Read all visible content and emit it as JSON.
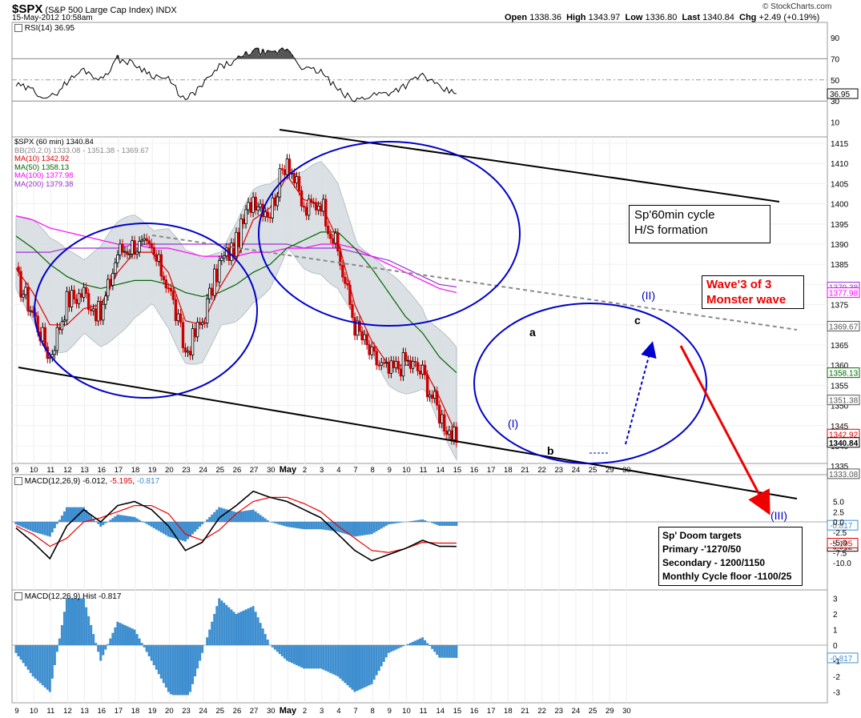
{
  "header": {
    "symbol": "$SPX",
    "name": "(S&P 500 Large Cap Index)",
    "exchange": "INDX",
    "date": "15-May-2012 10:58am",
    "open_label": "Open",
    "open": "1338.36",
    "high_label": "High",
    "high": "1343.97",
    "low_label": "Low",
    "low": "1336.80",
    "last_label": "Last",
    "last": "1340.84",
    "chg_label": "Chg",
    "chg": "+2.49 (+0.19%)",
    "source": "© StockCharts.com"
  },
  "rsi_panel": {
    "label": "RSI(14)",
    "value": "36.95",
    "ticks": [
      "90",
      "70",
      "50",
      "30",
      "10"
    ]
  },
  "price_panel": {
    "legend": [
      {
        "text": "$SPX (60 min) 1340.84",
        "color": "#000000"
      },
      {
        "text": "BB(20,2.0) 1333.08 - 1351.38 - 1369.67",
        "color": "#888888"
      },
      {
        "text": "MA(10) 1342.92",
        "color": "#dd0000"
      },
      {
        "text": "MA(50) 1358.13",
        "color": "#006600"
      },
      {
        "text": "MA(100) 1377.98",
        "color": "#ff00ff"
      },
      {
        "text": "MA(200) 1379.38",
        "color": "#9933cc"
      }
    ],
    "price_ticks": [
      "1415",
      "1410",
      "1405",
      "1400",
      "1395",
      "1390",
      "1385",
      "1380",
      "1375",
      "1370",
      "1365",
      "1360",
      "1355",
      "1350",
      "1345",
      "1340",
      "1335"
    ],
    "value_tags": [
      {
        "text": "1379.38",
        "value": 1379.38,
        "color": "#9933cc"
      },
      {
        "text": "1377.98",
        "value": 1377.98,
        "color": "#ff00ff"
      },
      {
        "text": "1369.67",
        "value": 1369.67,
        "color": "#555555"
      },
      {
        "text": "1358.13",
        "value": 1358.13,
        "color": "#006600"
      },
      {
        "text": "1351.38",
        "value": 1351.38,
        "color": "#555555"
      },
      {
        "text": "1342.92",
        "value": 1342.92,
        "color": "#dd0000"
      },
      {
        "text": "1340.84",
        "value": 1340.84,
        "color": "#000000"
      },
      {
        "text": "1333.08",
        "value": 1333.08,
        "color": "#555555"
      }
    ],
    "annotations": {
      "a": "a",
      "b": "b",
      "c": "c",
      "wave_i": "(I)",
      "wave_ii": "(II)",
      "wave_iii": "(III)"
    }
  },
  "macd_panel": {
    "label": "MACD(12,26,9)",
    "v1": "-6.012",
    "v2": "-5.195",
    "v3": "-0.817",
    "ticks": [
      "5.0",
      "2.5",
      "0.0",
      "-2.5",
      "-5.0",
      "-7.5",
      "-10.0"
    ],
    "tag1": "-6.012",
    "tag2": "-5.195",
    "tag3": "-0.817"
  },
  "hist_panel": {
    "label": "MACD(12,26,9) Hist",
    "value": "-0.817",
    "ticks": [
      "3",
      "2",
      "1",
      "0",
      "-1",
      "-2",
      "-3"
    ],
    "tag": "-0.817"
  },
  "x_axis": {
    "labels": [
      "9",
      "10",
      "11",
      "12",
      "13",
      "16",
      "17",
      "18",
      "19",
      "20",
      "23",
      "24",
      "25",
      "26",
      "27",
      "30",
      "May",
      "2",
      "3",
      "4",
      "7",
      "8",
      "9",
      "10",
      "11",
      "14",
      "15",
      "16",
      "17",
      "18",
      "21",
      "22",
      "23",
      "24",
      "25",
      "29",
      "30"
    ]
  },
  "notes": {
    "cycle": [
      "Sp'60min cycle",
      "H/S formation"
    ],
    "wave": [
      "Wave'3 of 3",
      "Monster wave"
    ],
    "targets": [
      "Sp' Doom targets",
      "Primary -'1270/50",
      "Secondary - 1200/1150",
      "Monthly Cycle floor -1100/25"
    ]
  },
  "colors": {
    "annotation_blue": "#0000cc",
    "arrow_red": "#ee0000",
    "macd_line": "#000000",
    "signal_line": "#ee0000",
    "histogram": "#3f8fd0",
    "bollinger_fill": "#d3dade",
    "candle_up": "#000000",
    "candle_down": "#cc0000"
  },
  "chart_data": {
    "type": "line",
    "title": "$SPX (S&P 500 Large Cap Index) 60 min",
    "xlabel": "",
    "ylabel": "",
    "ylim": [
      1332,
      1418
    ],
    "x": [
      "9",
      "10",
      "11",
      "12",
      "13",
      "16",
      "17",
      "18",
      "19",
      "20",
      "23",
      "24",
      "25",
      "26",
      "27",
      "30",
      "May",
      "2",
      "3",
      "4",
      "7",
      "8",
      "9",
      "10",
      "11",
      "14",
      "15"
    ],
    "series": [
      {
        "name": "$SPX (60 min)",
        "values": [
          1382,
          1373,
          1362,
          1376,
          1378,
          1372,
          1388,
          1390,
          1388,
          1380,
          1363,
          1371,
          1385,
          1390,
          1402,
          1398,
          1412,
          1398,
          1401,
          1388,
          1370,
          1362,
          1358,
          1361,
          1358,
          1348,
          1340.84
        ]
      },
      {
        "name": "MA(10)",
        "values": [
          1384,
          1378,
          1370,
          1370,
          1374,
          1375,
          1383,
          1388,
          1388,
          1383,
          1371,
          1370,
          1379,
          1386,
          1396,
          1399,
          1407,
          1401,
          1400,
          1391,
          1375,
          1366,
          1360,
          1360,
          1360,
          1352,
          1342.92
        ]
      },
      {
        "name": "MA(50)",
        "values": [
          1392,
          1389,
          1385,
          1382,
          1380,
          1379,
          1380,
          1381,
          1381,
          1380,
          1378,
          1377,
          1378,
          1380,
          1383,
          1385,
          1389,
          1391,
          1393,
          1393,
          1389,
          1384,
          1378,
          1372,
          1368,
          1362,
          1358.13
        ]
      },
      {
        "name": "MA(100)",
        "values": [
          1397,
          1396,
          1394,
          1393,
          1392,
          1391,
          1390,
          1390,
          1389,
          1389,
          1388,
          1387,
          1387,
          1387,
          1388,
          1388,
          1389,
          1389,
          1390,
          1390,
          1389,
          1387,
          1385,
          1383,
          1381,
          1379,
          1377.98
        ]
      },
      {
        "name": "MA(200)",
        "values": [
          1388,
          1388,
          1388,
          1389,
          1389,
          1389,
          1389,
          1390,
          1390,
          1390,
          1390,
          1390,
          1390,
          1390,
          1390,
          1390,
          1390,
          1389,
          1389,
          1389,
          1388,
          1387,
          1386,
          1384,
          1382,
          1380,
          1379.38
        ]
      }
    ],
    "rsi": [
      45,
      40,
      32,
      48,
      60,
      50,
      70,
      65,
      55,
      50,
      30,
      45,
      62,
      68,
      78,
      74,
      80,
      60,
      58,
      40,
      30,
      36,
      38,
      45,
      55,
      42,
      36.95
    ],
    "macd": [
      -1.5,
      -5,
      -9,
      -1,
      3,
      0,
      4,
      5,
      3,
      -1,
      -7,
      -5,
      1,
      4,
      7.5,
      6,
      5,
      3,
      1,
      -3,
      -7,
      -9.5,
      -8,
      -6.5,
      -4.5,
      -6,
      -6.012
    ],
    "macd_signal": [
      -1,
      -3,
      -6,
      -4,
      0,
      1,
      2.5,
      4,
      4,
      2,
      -3,
      -4.5,
      -2,
      2,
      5,
      6,
      6,
      4.5,
      2.5,
      -1,
      -4,
      -7,
      -7.5,
      -6.5,
      -5,
      -5.2,
      -5.195
    ],
    "macd_hist": [
      -0.5,
      -2,
      -3,
      3,
      3,
      -1,
      1.5,
      1,
      -1,
      -3,
      -4,
      -0.5,
      3,
      2,
      2.5,
      0,
      -1,
      -1.5,
      -1.5,
      -2,
      -3,
      -2.5,
      -0.5,
      0,
      0.5,
      -0.8,
      -0.817
    ]
  }
}
